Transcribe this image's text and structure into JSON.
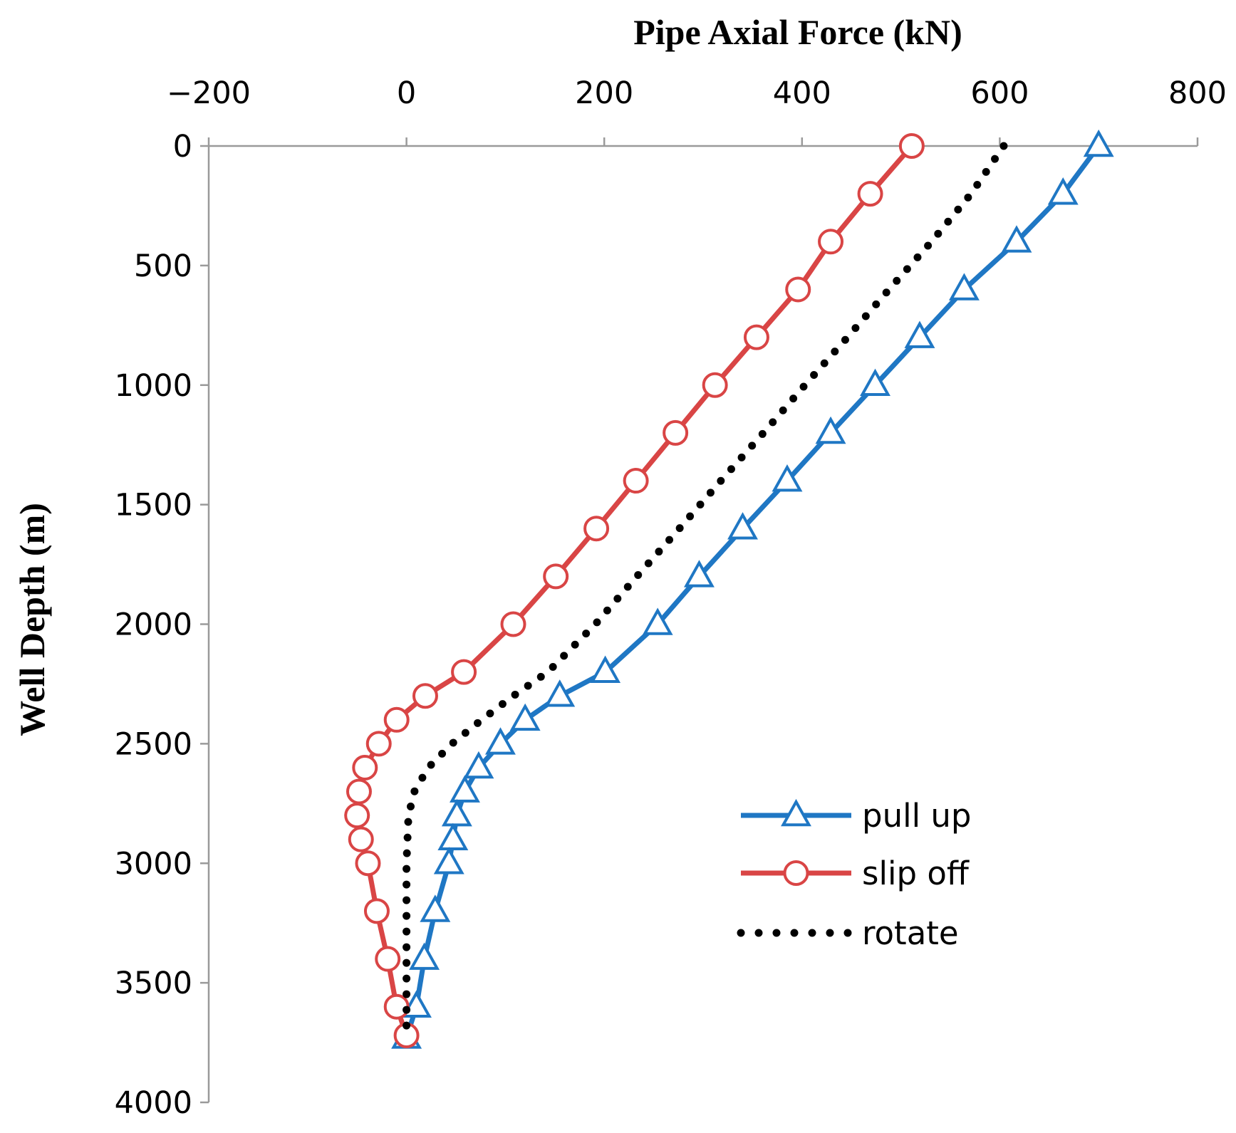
{
  "chart_data": {
    "type": "line",
    "title": "",
    "xlabel": "Pipe Axial Force (kN)",
    "ylabel": "Well Depth (m)",
    "x_axis_position": "top",
    "y_inverted": true,
    "xlim": [
      -200,
      800
    ],
    "ylim": [
      0,
      4000
    ],
    "x_ticks": [
      -200,
      0,
      200,
      400,
      600,
      800
    ],
    "x_tick_labels": [
      "−200",
      "0",
      "200",
      "400",
      "600",
      "800"
    ],
    "y_ticks": [
      0,
      500,
      1000,
      1500,
      2000,
      2500,
      3000,
      3500,
      4000
    ],
    "y_tick_labels": [
      "0",
      "500",
      "1000",
      "1500",
      "2000",
      "2500",
      "3000",
      "3500",
      "4000"
    ],
    "grid": false,
    "legend_position": "lower-right",
    "series": [
      {
        "name": "pull up",
        "color": "#1f77c4",
        "marker": "triangle",
        "line_style": "solid",
        "points": [
          {
            "x": 700,
            "y": 0
          },
          {
            "x": 664,
            "y": 200
          },
          {
            "x": 617,
            "y": 400
          },
          {
            "x": 564,
            "y": 600
          },
          {
            "x": 519,
            "y": 800
          },
          {
            "x": 474,
            "y": 1000
          },
          {
            "x": 429,
            "y": 1200
          },
          {
            "x": 385,
            "y": 1400
          },
          {
            "x": 340,
            "y": 1600
          },
          {
            "x": 296,
            "y": 1800
          },
          {
            "x": 254,
            "y": 2000
          },
          {
            "x": 201,
            "y": 2200
          },
          {
            "x": 155,
            "y": 2300
          },
          {
            "x": 120,
            "y": 2400
          },
          {
            "x": 95,
            "y": 2500
          },
          {
            "x": 73,
            "y": 2600
          },
          {
            "x": 59,
            "y": 2700
          },
          {
            "x": 51,
            "y": 2800
          },
          {
            "x": 47,
            "y": 2900
          },
          {
            "x": 43,
            "y": 3000
          },
          {
            "x": 29,
            "y": 3200
          },
          {
            "x": 18,
            "y": 3400
          },
          {
            "x": 10,
            "y": 3600
          },
          {
            "x": 0,
            "y": 3730
          }
        ]
      },
      {
        "name": "slip off",
        "color": "#d94545",
        "marker": "circle",
        "line_style": "solid",
        "points": [
          {
            "x": 511,
            "y": 0
          },
          {
            "x": 469,
            "y": 200
          },
          {
            "x": 429,
            "y": 400
          },
          {
            "x": 396,
            "y": 600
          },
          {
            "x": 354,
            "y": 800
          },
          {
            "x": 312,
            "y": 1000
          },
          {
            "x": 272,
            "y": 1200
          },
          {
            "x": 232,
            "y": 1400
          },
          {
            "x": 192,
            "y": 1600
          },
          {
            "x": 151,
            "y": 1800
          },
          {
            "x": 108,
            "y": 2000
          },
          {
            "x": 58,
            "y": 2200
          },
          {
            "x": 19,
            "y": 2300
          },
          {
            "x": -10,
            "y": 2400
          },
          {
            "x": -28,
            "y": 2500
          },
          {
            "x": -42,
            "y": 2600
          },
          {
            "x": -48,
            "y": 2700
          },
          {
            "x": -50,
            "y": 2800
          },
          {
            "x": -46,
            "y": 2900
          },
          {
            "x": -39,
            "y": 3000
          },
          {
            "x": -30,
            "y": 3200
          },
          {
            "x": -19,
            "y": 3400
          },
          {
            "x": -10,
            "y": 3600
          },
          {
            "x": 0,
            "y": 3720
          }
        ]
      },
      {
        "name": "rotate",
        "color": "#000000",
        "marker": "none",
        "line_style": "dotted",
        "points": [
          {
            "x": 604,
            "y": 0
          },
          {
            "x": 571,
            "y": 200
          },
          {
            "x": 531,
            "y": 400
          },
          {
            "x": 488,
            "y": 600
          },
          {
            "x": 446,
            "y": 800
          },
          {
            "x": 403,
            "y": 1000
          },
          {
            "x": 361,
            "y": 1200
          },
          {
            "x": 318,
            "y": 1400
          },
          {
            "x": 276,
            "y": 1600
          },
          {
            "x": 233,
            "y": 1800
          },
          {
            "x": 191,
            "y": 2000
          },
          {
            "x": 143,
            "y": 2200
          },
          {
            "x": 108,
            "y": 2300
          },
          {
            "x": 76,
            "y": 2400
          },
          {
            "x": 46,
            "y": 2500
          },
          {
            "x": 22,
            "y": 2600
          },
          {
            "x": 8,
            "y": 2700
          },
          {
            "x": 2,
            "y": 2800
          },
          {
            "x": 0,
            "y": 3000
          },
          {
            "x": 0,
            "y": 3300
          },
          {
            "x": 0,
            "y": 3500
          },
          {
            "x": 0,
            "y": 3700
          }
        ]
      }
    ]
  }
}
